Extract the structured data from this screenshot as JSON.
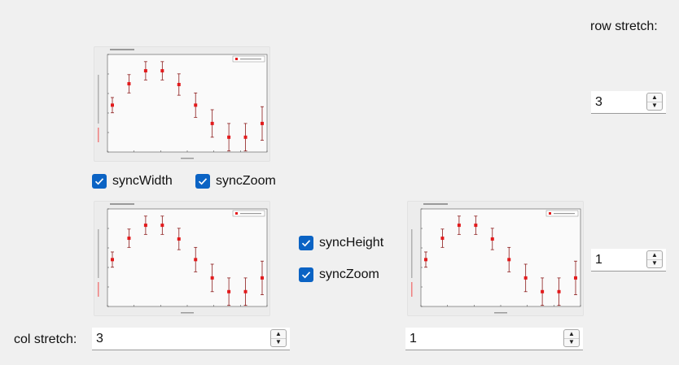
{
  "labels": {
    "row_stretch": "row stretch:",
    "col_stretch": "col stretch:"
  },
  "checkboxes": {
    "top_sync_width": {
      "label": "syncWidth",
      "checked": true
    },
    "top_sync_zoom": {
      "label": "syncZoom",
      "checked": true
    },
    "mid_sync_height": {
      "label": "syncHeight",
      "checked": true
    },
    "mid_sync_zoom": {
      "label": "syncZoom",
      "checked": true
    }
  },
  "spinboxes": {
    "row_top": {
      "value": "3"
    },
    "row_bottom": {
      "value": "1"
    },
    "col_left": {
      "value": "3"
    },
    "col_right": {
      "value": "1"
    }
  },
  "icons": {
    "check": "check-icon",
    "spin_up": "chevron-up-icon",
    "spin_down": "chevron-down-icon"
  },
  "colors": {
    "accent": "#0b63c4",
    "marker": "#e31a1c",
    "errorbar": "#8b1a1a"
  },
  "chart_data": [
    {
      "type": "scatter",
      "id": "plot-top-left",
      "series": [
        {
          "x": [
            0,
            1,
            2,
            3,
            4,
            5,
            6,
            7,
            8,
            9
          ],
          "y": [
            0.55,
            0.83,
            1.0,
            1.0,
            0.82,
            0.55,
            0.31,
            0.13,
            0.13,
            0.31
          ],
          "err": [
            0.1,
            0.12,
            0.12,
            0.12,
            0.14,
            0.16,
            0.18,
            0.18,
            0.18,
            0.22
          ]
        }
      ]
    },
    {
      "type": "scatter",
      "id": "plot-bottom-left",
      "series": [
        {
          "x": [
            0,
            1,
            2,
            3,
            4,
            5,
            6,
            7,
            8,
            9
          ],
          "y": [
            0.55,
            0.83,
            1.0,
            1.0,
            0.82,
            0.55,
            0.31,
            0.13,
            0.13,
            0.31
          ],
          "err": [
            0.1,
            0.12,
            0.12,
            0.12,
            0.14,
            0.16,
            0.18,
            0.18,
            0.18,
            0.22
          ]
        }
      ]
    },
    {
      "type": "scatter",
      "id": "plot-bottom-right",
      "series": [
        {
          "x": [
            0,
            1,
            2,
            3,
            4,
            5,
            6,
            7,
            8,
            9
          ],
          "y": [
            0.55,
            0.83,
            1.0,
            1.0,
            0.82,
            0.55,
            0.31,
            0.13,
            0.13,
            0.31
          ],
          "err": [
            0.1,
            0.12,
            0.12,
            0.12,
            0.14,
            0.16,
            0.18,
            0.18,
            0.18,
            0.22
          ]
        }
      ]
    }
  ]
}
